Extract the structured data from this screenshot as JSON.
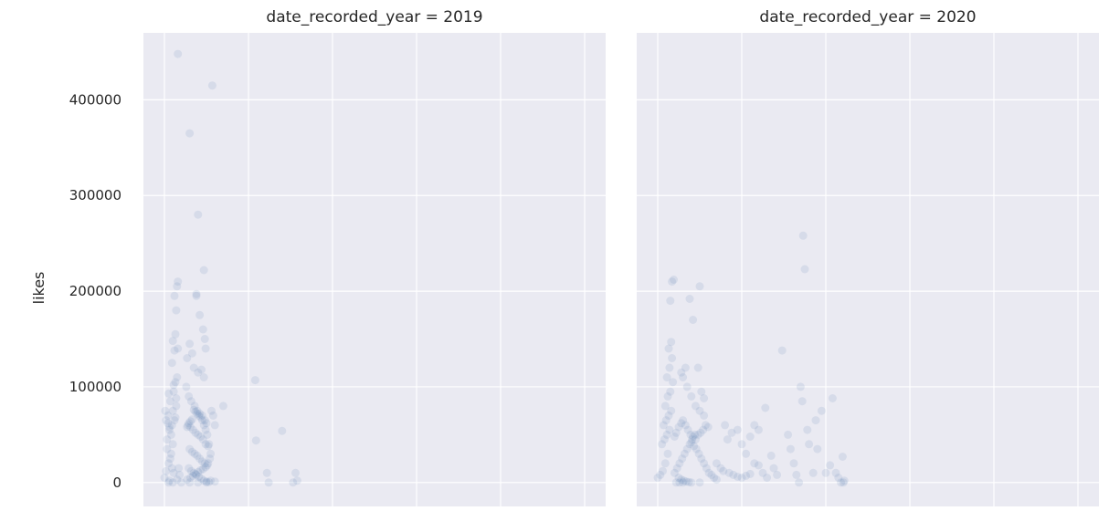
{
  "chart_data": {
    "type": "scatter",
    "grid": true,
    "ylabel": "likes",
    "ylim": [
      -25000,
      470000
    ],
    "yticks": [
      0,
      100000,
      200000,
      300000,
      400000
    ],
    "ytick_labels": [
      "0",
      "100000",
      "200000",
      "300000",
      "400000"
    ],
    "xlim": [
      -0.25,
      5.25
    ],
    "marker_color": "#4c72b0",
    "marker_alpha": 0.12,
    "panel_background": "#eaeaf2",
    "grid_color": "#ffffff",
    "facets": [
      {
        "title": "date_recorded_year = 2019",
        "points": [
          [
            0.0,
            5000
          ],
          [
            0.02,
            12000
          ],
          [
            0.05,
            20000
          ],
          [
            0.08,
            30000
          ],
          [
            0.03,
            45000
          ],
          [
            0.06,
            55000
          ],
          [
            0.09,
            60000
          ],
          [
            0.12,
            65000
          ],
          [
            0.04,
            70000
          ],
          [
            0.1,
            75000
          ],
          [
            0.14,
            80000
          ],
          [
            0.07,
            85000
          ],
          [
            0.11,
            95000
          ],
          [
            0.13,
            105000
          ],
          [
            0.15,
            110000
          ],
          [
            0.09,
            125000
          ],
          [
            0.12,
            138000
          ],
          [
            0.16,
            140000
          ],
          [
            0.1,
            148000
          ],
          [
            0.13,
            155000
          ],
          [
            0.14,
            180000
          ],
          [
            0.12,
            195000
          ],
          [
            0.15,
            205000
          ],
          [
            0.16,
            210000
          ],
          [
            0.16,
            448000
          ],
          [
            0.3,
            365000
          ],
          [
            0.57,
            415000
          ],
          [
            0.4,
            280000
          ],
          [
            0.47,
            222000
          ],
          [
            0.38,
            195000
          ],
          [
            0.38,
            197000
          ],
          [
            0.42,
            175000
          ],
          [
            0.46,
            160000
          ],
          [
            0.48,
            150000
          ],
          [
            0.49,
            140000
          ],
          [
            0.3,
            145000
          ],
          [
            0.27,
            130000
          ],
          [
            0.33,
            135000
          ],
          [
            0.35,
            120000
          ],
          [
            0.4,
            115000
          ],
          [
            0.44,
            118000
          ],
          [
            0.47,
            110000
          ],
          [
            0.26,
            100000
          ],
          [
            0.29,
            90000
          ],
          [
            0.32,
            85000
          ],
          [
            0.36,
            80000
          ],
          [
            0.39,
            75000
          ],
          [
            0.42,
            72000
          ],
          [
            0.45,
            70000
          ],
          [
            0.48,
            65000
          ],
          [
            0.5,
            62000
          ],
          [
            0.28,
            60000
          ],
          [
            0.31,
            58000
          ],
          [
            0.34,
            55000
          ],
          [
            0.37,
            52000
          ],
          [
            0.4,
            50000
          ],
          [
            0.43,
            48000
          ],
          [
            0.46,
            45000
          ],
          [
            0.49,
            40000
          ],
          [
            0.52,
            38000
          ],
          [
            0.3,
            35000
          ],
          [
            0.33,
            32000
          ],
          [
            0.36,
            30000
          ],
          [
            0.39,
            28000
          ],
          [
            0.42,
            25000
          ],
          [
            0.45,
            22000
          ],
          [
            0.48,
            20000
          ],
          [
            0.51,
            18000
          ],
          [
            0.29,
            15000
          ],
          [
            0.32,
            12000
          ],
          [
            0.35,
            10000
          ],
          [
            0.38,
            8000
          ],
          [
            0.41,
            6000
          ],
          [
            0.44,
            4000
          ],
          [
            0.47,
            2000
          ],
          [
            0.5,
            1000
          ],
          [
            0.53,
            500
          ],
          [
            0.27,
            3000
          ],
          [
            0.31,
            5000
          ],
          [
            0.34,
            7000
          ],
          [
            0.37,
            9000
          ],
          [
            0.4,
            11000
          ],
          [
            0.43,
            13000
          ],
          [
            0.46,
            14000
          ],
          [
            0.49,
            16000
          ],
          [
            0.52,
            20000
          ],
          [
            0.54,
            25000
          ],
          [
            0.55,
            30000
          ],
          [
            0.53,
            40000
          ],
          [
            0.51,
            50000
          ],
          [
            0.49,
            55000
          ],
          [
            0.47,
            60000
          ],
          [
            0.45,
            65000
          ],
          [
            0.43,
            68000
          ],
          [
            0.41,
            70000
          ],
          [
            0.39,
            72000
          ],
          [
            0.37,
            74000
          ],
          [
            0.35,
            76000
          ],
          [
            0.33,
            66000
          ],
          [
            0.31,
            64000
          ],
          [
            0.29,
            62000
          ],
          [
            0.27,
            58000
          ],
          [
            0.05,
            0
          ],
          [
            0.1,
            0
          ],
          [
            0.2,
            0
          ],
          [
            0.3,
            0
          ],
          [
            0.4,
            0
          ],
          [
            0.5,
            0
          ],
          [
            0.55,
            2000
          ],
          [
            0.6,
            1000
          ],
          [
            0.7,
            80000
          ],
          [
            0.6,
            60000
          ],
          [
            0.58,
            70000
          ],
          [
            0.56,
            75000
          ],
          [
            0.04,
            62000
          ],
          [
            0.06,
            58000
          ],
          [
            0.08,
            50000
          ],
          [
            0.1,
            40000
          ],
          [
            0.03,
            35000
          ],
          [
            0.07,
            25000
          ],
          [
            0.09,
            15000
          ],
          [
            0.11,
            10000
          ],
          [
            0.02,
            65000
          ],
          [
            0.13,
            68000
          ],
          [
            0.01,
            75000
          ],
          [
            0.14,
            88000
          ],
          [
            0.05,
            93000
          ],
          [
            0.11,
            102000
          ],
          [
            0.18,
            8000
          ],
          [
            0.17,
            15000
          ],
          [
            0.15,
            3000
          ],
          [
            0.06,
            2000
          ],
          [
            1.08,
            107000
          ],
          [
            1.09,
            44000
          ],
          [
            1.22,
            10000
          ],
          [
            1.24,
            0
          ],
          [
            1.4,
            54000
          ],
          [
            1.53,
            0
          ],
          [
            1.56,
            10000
          ],
          [
            1.58,
            2000
          ]
        ]
      },
      {
        "title": "date_recorded_year = 2020",
        "points": [
          [
            0.0,
            5000
          ],
          [
            0.03,
            8000
          ],
          [
            0.06,
            12000
          ],
          [
            0.09,
            20000
          ],
          [
            0.12,
            30000
          ],
          [
            0.05,
            40000
          ],
          [
            0.08,
            45000
          ],
          [
            0.11,
            50000
          ],
          [
            0.14,
            55000
          ],
          [
            0.07,
            60000
          ],
          [
            0.1,
            65000
          ],
          [
            0.13,
            70000
          ],
          [
            0.16,
            75000
          ],
          [
            0.09,
            80000
          ],
          [
            0.12,
            90000
          ],
          [
            0.15,
            95000
          ],
          [
            0.18,
            105000
          ],
          [
            0.11,
            110000
          ],
          [
            0.14,
            120000
          ],
          [
            0.17,
            130000
          ],
          [
            0.13,
            140000
          ],
          [
            0.16,
            147000
          ],
          [
            0.15,
            190000
          ],
          [
            0.17,
            210000
          ],
          [
            0.19,
            212000
          ],
          [
            0.2,
            48000
          ],
          [
            0.22,
            52000
          ],
          [
            0.25,
            58000
          ],
          [
            0.28,
            62000
          ],
          [
            0.3,
            65000
          ],
          [
            0.33,
            60000
          ],
          [
            0.36,
            55000
          ],
          [
            0.39,
            50000
          ],
          [
            0.42,
            48000
          ],
          [
            0.45,
            45000
          ],
          [
            0.48,
            50000
          ],
          [
            0.51,
            52000
          ],
          [
            0.54,
            55000
          ],
          [
            0.57,
            60000
          ],
          [
            0.6,
            58000
          ],
          [
            0.4,
            42000
          ],
          [
            0.43,
            38000
          ],
          [
            0.46,
            35000
          ],
          [
            0.49,
            30000
          ],
          [
            0.52,
            25000
          ],
          [
            0.55,
            20000
          ],
          [
            0.58,
            15000
          ],
          [
            0.61,
            10000
          ],
          [
            0.64,
            8000
          ],
          [
            0.67,
            5000
          ],
          [
            0.7,
            3000
          ],
          [
            0.2,
            10000
          ],
          [
            0.23,
            15000
          ],
          [
            0.26,
            20000
          ],
          [
            0.29,
            25000
          ],
          [
            0.32,
            30000
          ],
          [
            0.35,
            35000
          ],
          [
            0.38,
            40000
          ],
          [
            0.41,
            45000
          ],
          [
            0.44,
            50000
          ],
          [
            0.25,
            5000
          ],
          [
            0.28,
            3000
          ],
          [
            0.31,
            2000
          ],
          [
            0.34,
            1000
          ],
          [
            0.37,
            500
          ],
          [
            0.4,
            0
          ],
          [
            0.22,
            0
          ],
          [
            0.26,
            0
          ],
          [
            0.3,
            0
          ],
          [
            0.5,
            0
          ],
          [
            0.3,
            110000
          ],
          [
            0.35,
            100000
          ],
          [
            0.4,
            90000
          ],
          [
            0.45,
            80000
          ],
          [
            0.5,
            75000
          ],
          [
            0.55,
            70000
          ],
          [
            0.38,
            192000
          ],
          [
            0.42,
            170000
          ],
          [
            0.5,
            205000
          ],
          [
            0.48,
            120000
          ],
          [
            0.52,
            95000
          ],
          [
            0.55,
            88000
          ],
          [
            0.33,
            120000
          ],
          [
            0.28,
            115000
          ],
          [
            0.8,
            60000
          ],
          [
            0.83,
            45000
          ],
          [
            0.88,
            52000
          ],
          [
            0.95,
            55000
          ],
          [
            1.0,
            40000
          ],
          [
            1.05,
            30000
          ],
          [
            1.1,
            48000
          ],
          [
            1.15,
            60000
          ],
          [
            1.2,
            55000
          ],
          [
            0.7,
            20000
          ],
          [
            0.75,
            15000
          ],
          [
            0.78,
            12000
          ],
          [
            0.85,
            10000
          ],
          [
            0.9,
            8000
          ],
          [
            0.95,
            6000
          ],
          [
            1.0,
            5000
          ],
          [
            1.05,
            7000
          ],
          [
            1.1,
            9000
          ],
          [
            1.15,
            20000
          ],
          [
            1.2,
            18000
          ],
          [
            1.25,
            10000
          ],
          [
            1.28,
            78000
          ],
          [
            1.3,
            5000
          ],
          [
            1.35,
            28000
          ],
          [
            1.38,
            15000
          ],
          [
            1.42,
            8000
          ],
          [
            1.48,
            138000
          ],
          [
            1.55,
            50000
          ],
          [
            1.58,
            35000
          ],
          [
            1.62,
            20000
          ],
          [
            1.65,
            8000
          ],
          [
            1.68,
            0
          ],
          [
            1.7,
            100000
          ],
          [
            1.72,
            85000
          ],
          [
            1.73,
            258000
          ],
          [
            1.75,
            223000
          ],
          [
            1.78,
            55000
          ],
          [
            1.8,
            40000
          ],
          [
            1.85,
            10000
          ],
          [
            1.88,
            65000
          ],
          [
            1.9,
            35000
          ],
          [
            1.95,
            75000
          ],
          [
            2.0,
            10000
          ],
          [
            2.05,
            18000
          ],
          [
            2.08,
            88000
          ],
          [
            2.12,
            10000
          ],
          [
            2.15,
            5000
          ],
          [
            2.18,
            0
          ],
          [
            2.2,
            27000
          ],
          [
            2.21,
            0
          ],
          [
            2.22,
            2000
          ]
        ]
      }
    ]
  }
}
